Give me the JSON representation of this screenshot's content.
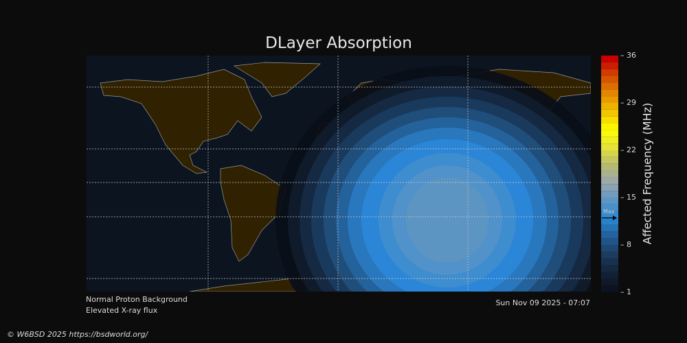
{
  "title": "DLayer Absorption",
  "colorbar": {
    "label": "Affected Frequency (MHz)",
    "ticks": [
      "36",
      "29",
      "22",
      "15",
      "8",
      "1"
    ],
    "min": 1,
    "max": 36,
    "max_marker_label": "Max",
    "max_marker_value": 12,
    "colors": [
      "#0d1220",
      "#13243a",
      "#1c3d63",
      "#24609a",
      "#2a88d6",
      "#5e96c4",
      "#9aa6ae",
      "#b8bc70",
      "#e4e23a",
      "#ffff00",
      "#f2c400",
      "#e48a00",
      "#d44c00",
      "#c80000"
    ]
  },
  "map": {
    "ocean_color": "#0c1420",
    "land_color": "#302100",
    "coast_color": "#9a9a9a"
  },
  "status": {
    "proton": "Normal Proton Background",
    "xray": "Elevated X-ray flux"
  },
  "timestamp": "Sun Nov 09 2025 - 07:07",
  "copyright": "© W6BSD 2025 https://bsdworld.org/"
}
